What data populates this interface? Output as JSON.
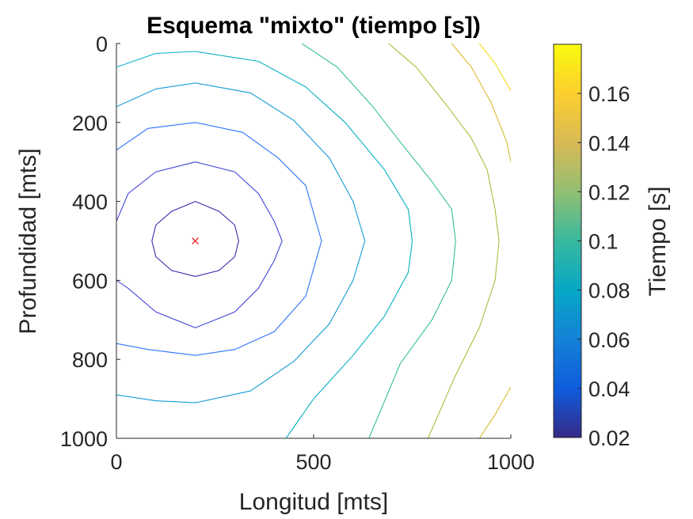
{
  "chart_data": {
    "type": "contour",
    "title": "Esquema \"mixto\" (tiempo [s])",
    "xlabel": "Longitud [mts]",
    "ylabel": "Profundidad [mts]",
    "xlim": [
      0,
      1000
    ],
    "ylim": [
      0,
      1000
    ],
    "y_reversed": true,
    "x_ticks": [
      "0",
      "500",
      "1000"
    ],
    "y_ticks": [
      "0",
      "200",
      "400",
      "600",
      "800",
      "1000"
    ],
    "grid": false,
    "source_marker": {
      "x": 200,
      "y": 500,
      "symbol": "x",
      "color": "#ff0000"
    },
    "colorbar": {
      "label": "Tiempo [s]",
      "range": [
        0.02,
        0.18
      ],
      "ticks": [
        "0.02",
        "0.04",
        "0.06",
        "0.08",
        "0.1",
        "0.12",
        "0.14",
        "0.16"
      ],
      "colormap": "parula"
    },
    "contours": [
      {
        "level": 0.03,
        "color": "#3e26a8",
        "points": [
          [
            200,
            400
          ],
          [
            260,
            425
          ],
          [
            300,
            460
          ],
          [
            310,
            500
          ],
          [
            300,
            540
          ],
          [
            260,
            575
          ],
          [
            200,
            590
          ],
          [
            140,
            575
          ],
          [
            100,
            540
          ],
          [
            90,
            500
          ],
          [
            100,
            460
          ],
          [
            140,
            425
          ],
          [
            200,
            400
          ]
        ]
      },
      {
        "level": 0.045,
        "color": "#4145d8",
        "points": [
          [
            200,
            300
          ],
          [
            300,
            325
          ],
          [
            360,
            380
          ],
          [
            400,
            450
          ],
          [
            420,
            500
          ],
          [
            400,
            550
          ],
          [
            360,
            620
          ],
          [
            300,
            680
          ],
          [
            200,
            720
          ],
          [
            100,
            680
          ],
          [
            30,
            620
          ],
          [
            0,
            600
          ]
        ]
      },
      {
        "level": 0.045,
        "color": "#4145d8",
        "points": [
          [
            0,
            450
          ],
          [
            30,
            380
          ],
          [
            100,
            325
          ],
          [
            200,
            300
          ]
        ]
      },
      {
        "level": 0.06,
        "color": "#2d73fa",
        "points": [
          [
            0,
            270
          ],
          [
            80,
            215
          ],
          [
            200,
            200
          ],
          [
            320,
            225
          ],
          [
            410,
            290
          ],
          [
            480,
            360
          ],
          [
            520,
            500
          ],
          [
            480,
            640
          ],
          [
            400,
            730
          ],
          [
            300,
            775
          ],
          [
            200,
            790
          ],
          [
            80,
            775
          ],
          [
            0,
            760
          ]
        ]
      },
      {
        "level": 0.075,
        "color": "#149bd5",
        "points": [
          [
            0,
            160
          ],
          [
            100,
            115
          ],
          [
            200,
            100
          ],
          [
            340,
            125
          ],
          [
            450,
            195
          ],
          [
            540,
            290
          ],
          [
            600,
            400
          ],
          [
            630,
            500
          ],
          [
            600,
            600
          ],
          [
            540,
            710
          ],
          [
            450,
            805
          ],
          [
            340,
            880
          ],
          [
            200,
            910
          ],
          [
            100,
            905
          ],
          [
            0,
            890
          ]
        ]
      },
      {
        "level": 0.09,
        "color": "#06b0c6",
        "points": [
          [
            0,
            60
          ],
          [
            100,
            25
          ],
          [
            200,
            20
          ],
          [
            360,
            45
          ],
          [
            480,
            110
          ],
          [
            580,
            200
          ],
          [
            680,
            320
          ],
          [
            740,
            420
          ],
          [
            750,
            500
          ],
          [
            740,
            580
          ],
          [
            680,
            690
          ],
          [
            600,
            790
          ],
          [
            500,
            900
          ],
          [
            430,
            1000
          ]
        ]
      },
      {
        "level": 0.105,
        "color": "#35bf9a",
        "points": [
          [
            470,
            0
          ],
          [
            560,
            60
          ],
          [
            650,
            160
          ],
          [
            720,
            250
          ],
          [
            800,
            350
          ],
          [
            850,
            420
          ],
          [
            860,
            500
          ],
          [
            850,
            600
          ],
          [
            800,
            700
          ],
          [
            720,
            810
          ],
          [
            640,
            1000
          ]
        ]
      },
      {
        "level": 0.12,
        "color": "#a8be3c",
        "points": [
          [
            690,
            0
          ],
          [
            760,
            60
          ],
          [
            840,
            160
          ],
          [
            900,
            240
          ],
          [
            940,
            320
          ],
          [
            960,
            420
          ],
          [
            970,
            500
          ],
          [
            960,
            600
          ],
          [
            920,
            720
          ],
          [
            860,
            840
          ],
          [
            790,
            1000
          ]
        ]
      },
      {
        "level": 0.135,
        "color": "#d8b930",
        "points": [
          [
            850,
            0
          ],
          [
            900,
            60
          ],
          [
            950,
            150
          ],
          [
            990,
            250
          ],
          [
            1000,
            300
          ]
        ]
      },
      {
        "level": 0.15,
        "color": "#f5de1a",
        "points": [
          [
            920,
            0
          ],
          [
            960,
            50
          ],
          [
            1000,
            120
          ]
        ]
      },
      {
        "level": 0.135,
        "color": "#d8b930",
        "points": [
          [
            920,
            1000
          ],
          [
            960,
            940
          ],
          [
            1000,
            870
          ]
        ]
      }
    ]
  }
}
